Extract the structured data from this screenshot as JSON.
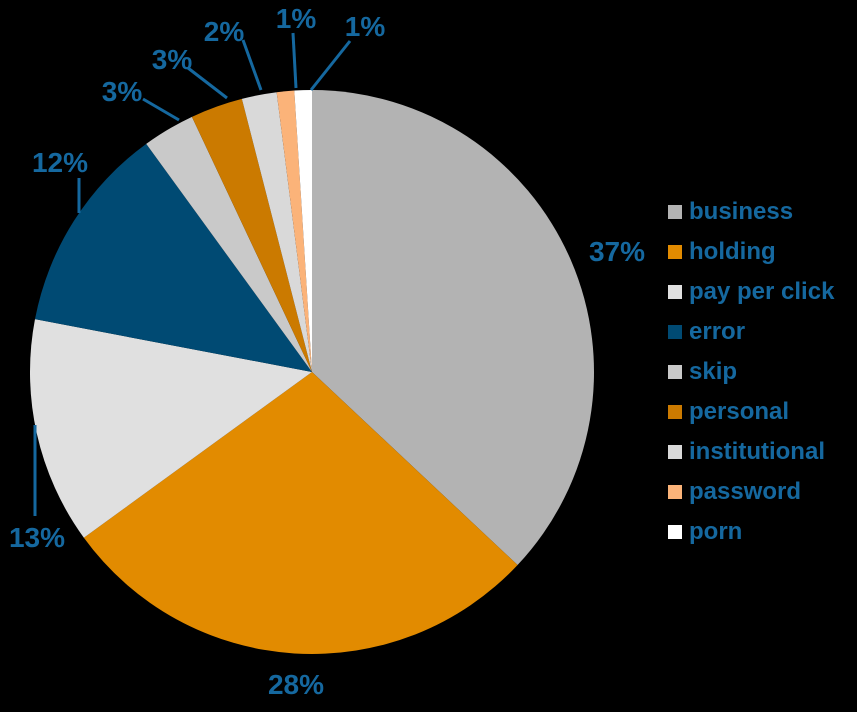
{
  "background_color": "#000000",
  "label_color": "#15689f",
  "chart_data": {
    "type": "pie",
    "title": "",
    "legend_position": "right",
    "start_angle_deg": 0,
    "direction": "clockwise",
    "slices": [
      {
        "label": "business",
        "value": 37,
        "pct_label": "37%",
        "color": "#b3b3b3"
      },
      {
        "label": "holding",
        "value": 28,
        "pct_label": "28%",
        "color": "#e28b00"
      },
      {
        "label": "pay per click",
        "value": 13,
        "pct_label": "13%",
        "color": "#e0e0e0"
      },
      {
        "label": "error",
        "value": 12,
        "pct_label": "12%",
        "color": "#004a73"
      },
      {
        "label": "skip",
        "value": 3,
        "pct_label": "3%",
        "color": "#c9c9c9"
      },
      {
        "label": "personal",
        "value": 3,
        "pct_label": "3%",
        "color": "#cb7a00"
      },
      {
        "label": "institutional",
        "value": 2,
        "pct_label": "2%",
        "color": "#d9d9d9"
      },
      {
        "label": "password",
        "value": 1,
        "pct_label": "1%",
        "color": "#fbb379"
      },
      {
        "label": "porn",
        "value": 1,
        "pct_label": "1%",
        "color": "#ffffff"
      }
    ]
  }
}
